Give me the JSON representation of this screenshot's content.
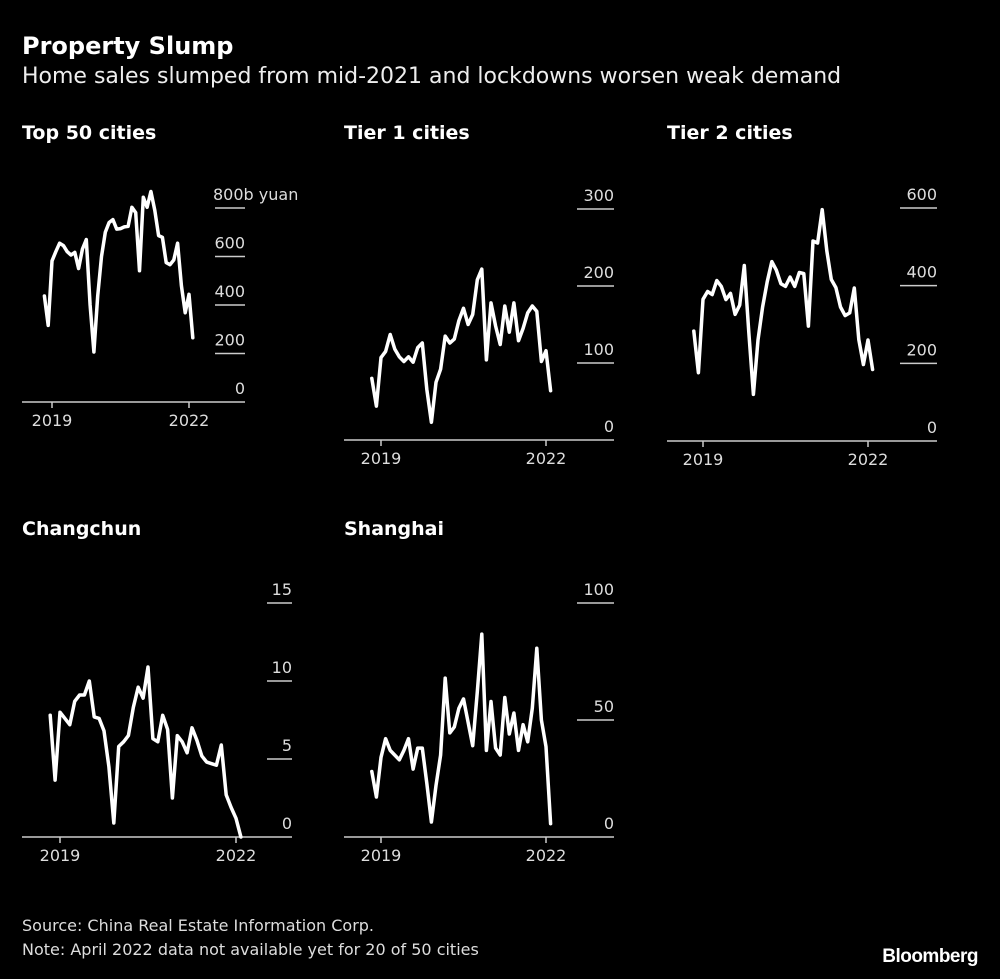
{
  "header": {
    "title": "Property Slump",
    "subtitle": "Home sales slumped from mid-2021 and lockdowns worsen weak demand"
  },
  "footer": {
    "source": "Source: China Real Estate Information Corp.",
    "note": "Note: April 2022 data not available yet for 20 of 50 cities",
    "logo": "Bloomberg"
  },
  "colors": {
    "background": "#000000",
    "line": "#ffffff",
    "text": "#dddddd"
  },
  "chart_data": [
    {
      "type": "line",
      "title": "Top 50 cities",
      "ylabel": "b yuan",
      "x_start": "2018-11",
      "x_end": "2022-02",
      "x_frequency": "monthly",
      "x_tick_labels": [
        "2019",
        "2022"
      ],
      "y_tick_labels": [
        "800b yuan",
        "600",
        "400",
        "200",
        "0"
      ],
      "y_ticks": [
        800,
        600,
        400,
        200,
        0
      ],
      "ylim": [
        0,
        800
      ],
      "grid": false,
      "values": [
        437,
        316,
        582,
        620,
        655,
        645,
        620,
        606,
        617,
        550,
        630,
        670,
        400,
        206,
        437,
        600,
        700,
        740,
        752,
        713,
        715,
        722,
        724,
        803,
        781,
        541,
        844,
        803,
        868,
        790,
        686,
        679,
        575,
        566,
        586,
        655,
        480,
        368,
        444,
        265
      ]
    },
    {
      "type": "line",
      "title": "Tier 1 cities",
      "x_start": "2018-11",
      "x_end": "2022-02",
      "x_frequency": "monthly",
      "x_tick_labels": [
        "2019",
        "2022"
      ],
      "y_tick_labels": [
        "300",
        "200",
        "100",
        "0"
      ],
      "y_ticks": [
        300,
        200,
        100,
        0
      ],
      "ylim": [
        0,
        300
      ],
      "grid": false,
      "values": [
        80,
        44,
        107,
        115,
        137,
        118,
        108,
        102,
        108,
        101,
        120,
        126,
        66,
        23,
        75,
        92,
        135,
        126,
        131,
        155,
        171,
        150,
        163,
        208,
        222,
        104,
        178,
        148,
        124,
        174,
        140,
        178,
        129,
        145,
        165,
        174,
        167,
        102,
        116,
        64
      ]
    },
    {
      "type": "line",
      "title": "Tier 2 cities",
      "x_start": "2018-11",
      "x_end": "2022-02",
      "x_frequency": "monthly",
      "x_tick_labels": [
        "2019",
        "2022"
      ],
      "y_tick_labels": [
        "600",
        "400",
        "200",
        "0"
      ],
      "y_ticks": [
        600,
        400,
        200,
        0
      ],
      "ylim": [
        0,
        600
      ],
      "grid": false,
      "values": [
        283,
        176,
        365,
        385,
        377,
        413,
        398,
        364,
        380,
        326,
        350,
        452,
        280,
        120,
        260,
        345,
        410,
        462,
        440,
        405,
        398,
        422,
        398,
        434,
        431,
        296,
        515,
        510,
        596,
        490,
        416,
        395,
        345,
        323,
        330,
        394,
        261,
        197,
        260,
        184
      ]
    },
    {
      "type": "line",
      "title": "Changchun",
      "x_start": "2018-11",
      "x_end": "2022-02",
      "x_frequency": "monthly",
      "x_tick_labels": [
        "2019",
        "2022"
      ],
      "y_tick_labels": [
        "15",
        "10",
        "5",
        "0"
      ],
      "y_ticks": [
        15,
        10,
        5,
        0
      ],
      "ylim": [
        0,
        15
      ],
      "grid": false,
      "values": [
        7.8,
        3.65,
        8.0,
        7.6,
        7.2,
        8.7,
        9.1,
        9.1,
        10.0,
        7.7,
        7.6,
        6.8,
        4.5,
        0.9,
        5.8,
        6.1,
        6.5,
        8.3,
        9.6,
        8.9,
        10.9,
        6.3,
        6.1,
        7.8,
        6.9,
        2.5,
        6.5,
        6.1,
        5.4,
        7.0,
        6.2,
        5.2,
        4.8,
        4.7,
        4.6,
        5.9,
        2.7,
        1.9,
        1.2,
        0
      ]
    },
    {
      "type": "line",
      "title": "Shanghai",
      "x_start": "2018-11",
      "x_end": "2022-02",
      "x_frequency": "monthly",
      "x_tick_labels": [
        "2019",
        "2022"
      ],
      "y_tick_labels": [
        "100",
        "50",
        "0"
      ],
      "y_ticks": [
        100,
        50,
        0
      ],
      "ylim": [
        0,
        100
      ],
      "grid": false,
      "values": [
        28,
        17.1,
        34,
        42,
        37,
        35,
        33,
        37,
        42,
        29,
        38,
        38,
        23,
        6.4,
        22,
        35,
        67.9,
        44.5,
        47,
        55,
        59,
        49,
        39,
        62,
        86.7,
        37,
        57.9,
        38,
        35,
        59.6,
        44,
        53,
        37,
        48,
        40.7,
        55,
        80.7,
        50,
        38.6,
        5.7
      ]
    }
  ]
}
